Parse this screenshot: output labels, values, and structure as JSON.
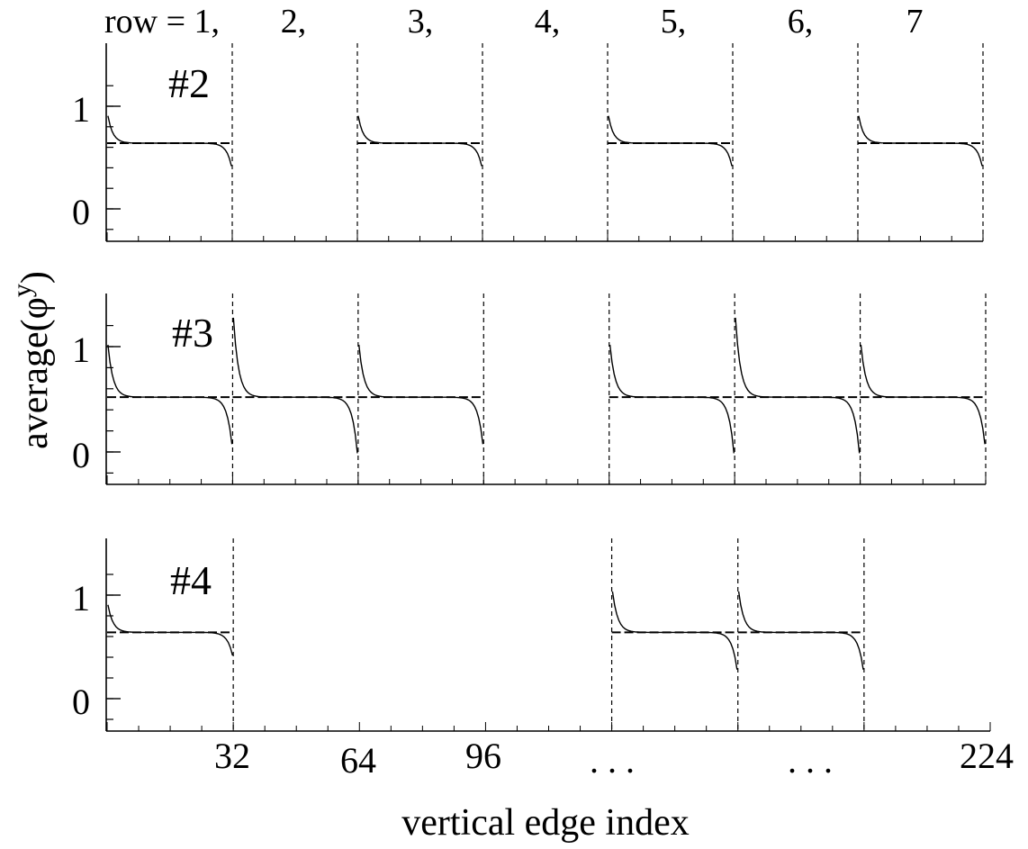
{
  "figure": {
    "header_labels": [
      "row = 1,",
      "2,",
      "3,",
      "4,",
      "5,",
      "6,",
      "7"
    ],
    "x_tick_labels": [
      "32",
      "64",
      "96",
      ". . .",
      ". . .",
      "224"
    ],
    "xlabel": "vertical edge index",
    "ylabel": "average(φ",
    "ylabel_sup": "y",
    "ylabel_close": ")"
  },
  "chart_data": [
    {
      "type": "line",
      "panel_label": "#2",
      "xlabel": "vertical edge index",
      "ylabel": "average(φy)",
      "xlim": [
        0,
        224
      ],
      "ylim": [
        -0.25,
        1.25
      ],
      "y_tick_labels": [
        "0",
        "1"
      ],
      "row_boundaries": [
        32,
        64,
        96,
        128,
        160,
        192,
        224
      ],
      "rows_with_curves": [
        1,
        3,
        5,
        7
      ],
      "plateau_value": 0.64,
      "left_edge_value": 0.95,
      "right_edge_value": 0.38
    },
    {
      "type": "line",
      "panel_label": "#3",
      "xlabel": "vertical edge index",
      "ylabel": "average(φy)",
      "xlim": [
        0,
        224
      ],
      "ylim": [
        -0.25,
        1.25
      ],
      "y_tick_labels": [
        "0",
        "1"
      ],
      "row_boundaries": [
        32,
        64,
        96,
        128,
        160,
        192,
        224
      ],
      "rows_with_curves": [
        1,
        2,
        3,
        5,
        6,
        7
      ],
      "plateau_value": 0.52,
      "left_edge_values": [
        1.1,
        1.4,
        1.1,
        1.1,
        1.4,
        1.1
      ],
      "right_edge_values": [
        0.0,
        -0.1,
        0.0,
        -0.1,
        -0.1,
        0.0
      ]
    },
    {
      "type": "line",
      "panel_label": "#4",
      "xlabel": "vertical edge index",
      "ylabel": "average(φy)",
      "xlim": [
        0,
        224
      ],
      "ylim": [
        -0.25,
        1.25
      ],
      "y_tick_labels": [
        "0",
        "1"
      ],
      "x_tick_labels": [
        "32",
        "64",
        "96",
        ". . .",
        ". . .",
        "224"
      ],
      "row_boundaries": [
        32,
        64,
        96,
        128,
        160,
        192,
        224
      ],
      "rows_with_curves": [
        1,
        5,
        6
      ],
      "plateau_value": 0.64,
      "left_edge_values": [
        0.95,
        1.1,
        1.1
      ],
      "right_edge_values": [
        0.38,
        0.22,
        0.22
      ]
    }
  ]
}
